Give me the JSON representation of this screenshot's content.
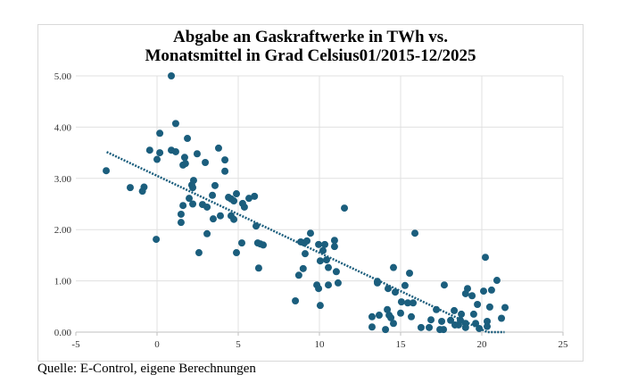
{
  "chart_data": {
    "type": "scatter",
    "title_line1": "Abgabe an Gaskraftwerke in TWh vs.",
    "title_line2": "Monatsmittel in Grad Celsius01/2015-12/2025",
    "xlabel": "",
    "ylabel": "",
    "xlim": [
      -5,
      25
    ],
    "ylim": [
      0,
      5
    ],
    "xticks": [
      "-5",
      "0",
      "5",
      "10",
      "15",
      "20",
      "25"
    ],
    "xtick_values": [
      -5,
      0,
      5,
      10,
      15,
      20,
      25
    ],
    "yticks": [
      "0.00",
      "1.00",
      "2.00",
      "3.00",
      "4.00",
      "5.00"
    ],
    "ytick_values": [
      0,
      1,
      2,
      3,
      4,
      5
    ],
    "grid": true,
    "point_color": "#1b5e7d",
    "trendline": {
      "type": "linear",
      "slope": -0.15,
      "intercept": 3.05,
      "x_start": -3.1,
      "x_end": 21.4,
      "clip_min": 0,
      "style": "dotted"
    },
    "points": [
      [
        -3.13,
        3.15
      ],
      [
        -1.65,
        2.82
      ],
      [
        -0.9,
        2.75
      ],
      [
        -0.8,
        2.83
      ],
      [
        -0.45,
        3.55
      ],
      [
        -0.05,
        1.81
      ],
      [
        0,
        3.37
      ],
      [
        0.17,
        3.88
      ],
      [
        0.17,
        3.5
      ],
      [
        0.88,
        5.0
      ],
      [
        0.88,
        3.55
      ],
      [
        1.15,
        4.07
      ],
      [
        1.15,
        3.52
      ],
      [
        1.7,
        3.41
      ],
      [
        1.6,
        3.26
      ],
      [
        1.75,
        3.29
      ],
      [
        1.87,
        3.78
      ],
      [
        2.47,
        3.48
      ],
      [
        2.25,
        2.96
      ],
      [
        2.14,
        2.87
      ],
      [
        2.2,
        2.82
      ],
      [
        1.98,
        2.61
      ],
      [
        2.2,
        2.5
      ],
      [
        1.6,
        2.47
      ],
      [
        1.48,
        2.3
      ],
      [
        1.48,
        2.14
      ],
      [
        2.97,
        3.31
      ],
      [
        3.79,
        3.59
      ],
      [
        4.18,
        3.36
      ],
      [
        4.18,
        3.14
      ],
      [
        3.57,
        2.86
      ],
      [
        3.41,
        2.67
      ],
      [
        2.8,
        2.49
      ],
      [
        3.08,
        2.44
      ],
      [
        3.46,
        2.21
      ],
      [
        3.9,
        2.27
      ],
      [
        3.08,
        1.92
      ],
      [
        2.58,
        1.55
      ],
      [
        4.4,
        2.63
      ],
      [
        4.56,
        2.6
      ],
      [
        4.73,
        2.56
      ],
      [
        4.89,
        2.7
      ],
      [
        4.56,
        2.27
      ],
      [
        4.73,
        2.2
      ],
      [
        5.27,
        2.51
      ],
      [
        5.38,
        2.44
      ],
      [
        5.66,
        2.61
      ],
      [
        6.0,
        2.65
      ],
      [
        6.1,
        2.07
      ],
      [
        5.22,
        1.74
      ],
      [
        4.89,
        1.55
      ],
      [
        6.2,
        1.74
      ],
      [
        6.37,
        1.72
      ],
      [
        6.54,
        1.7
      ],
      [
        6.26,
        1.25
      ],
      [
        11.54,
        2.42
      ],
      [
        15.88,
        1.93
      ],
      [
        9.45,
        1.93
      ],
      [
        8.85,
        1.76
      ],
      [
        9.07,
        1.74
      ],
      [
        9.23,
        1.78
      ],
      [
        9.12,
        1.53
      ],
      [
        9.95,
        1.71
      ],
      [
        10.33,
        1.71
      ],
      [
        10.22,
        1.59
      ],
      [
        10.93,
        1.79
      ],
      [
        10.93,
        1.67
      ],
      [
        10.05,
        1.39
      ],
      [
        10.44,
        1.41
      ],
      [
        9.0,
        1.24
      ],
      [
        8.73,
        1.11
      ],
      [
        10.55,
        1.26
      ],
      [
        11.04,
        1.18
      ],
      [
        9.84,
        0.92
      ],
      [
        9.95,
        0.85
      ],
      [
        10.55,
        0.92
      ],
      [
        11.15,
        0.96
      ],
      [
        8.52,
        0.61
      ],
      [
        10.05,
        0.52
      ],
      [
        13.57,
        0.99
      ],
      [
        13.57,
        0.96
      ],
      [
        14.56,
        1.26
      ],
      [
        15.55,
        1.15
      ],
      [
        14.23,
        0.85
      ],
      [
        14.67,
        0.78
      ],
      [
        15.27,
        0.91
      ],
      [
        15.05,
        0.59
      ],
      [
        15.44,
        0.57
      ],
      [
        15.77,
        0.57
      ],
      [
        17.69,
        0.92
      ],
      [
        13.24,
        0.3
      ],
      [
        13.24,
        0.1
      ],
      [
        13.68,
        0.33
      ],
      [
        14.18,
        0.44
      ],
      [
        14.29,
        0.33
      ],
      [
        14.4,
        0.28
      ],
      [
        14.56,
        0.17
      ],
      [
        14.07,
        0.05
      ],
      [
        15.0,
        0.37
      ],
      [
        15.66,
        0.3
      ],
      [
        16.26,
        0.09
      ],
      [
        16.76,
        0.09
      ],
      [
        16.87,
        0.24
      ],
      [
        17.2,
        0.44
      ],
      [
        17.42,
        0.05
      ],
      [
        17.64,
        0.05
      ],
      [
        17.53,
        0.21
      ],
      [
        18.08,
        0.23
      ],
      [
        18.3,
        0.42
      ],
      [
        18.35,
        0.14
      ],
      [
        18.57,
        0.14
      ],
      [
        18.74,
        0.35
      ],
      [
        18.68,
        0.23
      ],
      [
        19.0,
        0.17
      ],
      [
        19.0,
        0.09
      ],
      [
        19.0,
        0.75
      ],
      [
        19.12,
        0.85
      ],
      [
        19.4,
        0.71
      ],
      [
        19.73,
        0.54
      ],
      [
        19.5,
        0.35
      ],
      [
        19.62,
        0.17
      ],
      [
        19.84,
        0.07
      ],
      [
        20.22,
        1.46
      ],
      [
        20.11,
        0.8
      ],
      [
        20.6,
        0.82
      ],
      [
        20.93,
        1.01
      ],
      [
        20.49,
        0.49
      ],
      [
        20.33,
        0.21
      ],
      [
        20.33,
        0.11
      ],
      [
        21.21,
        0.27
      ],
      [
        21.43,
        0.48
      ]
    ]
  },
  "source": "Quelle: E-Control, eigene Berechnungen"
}
